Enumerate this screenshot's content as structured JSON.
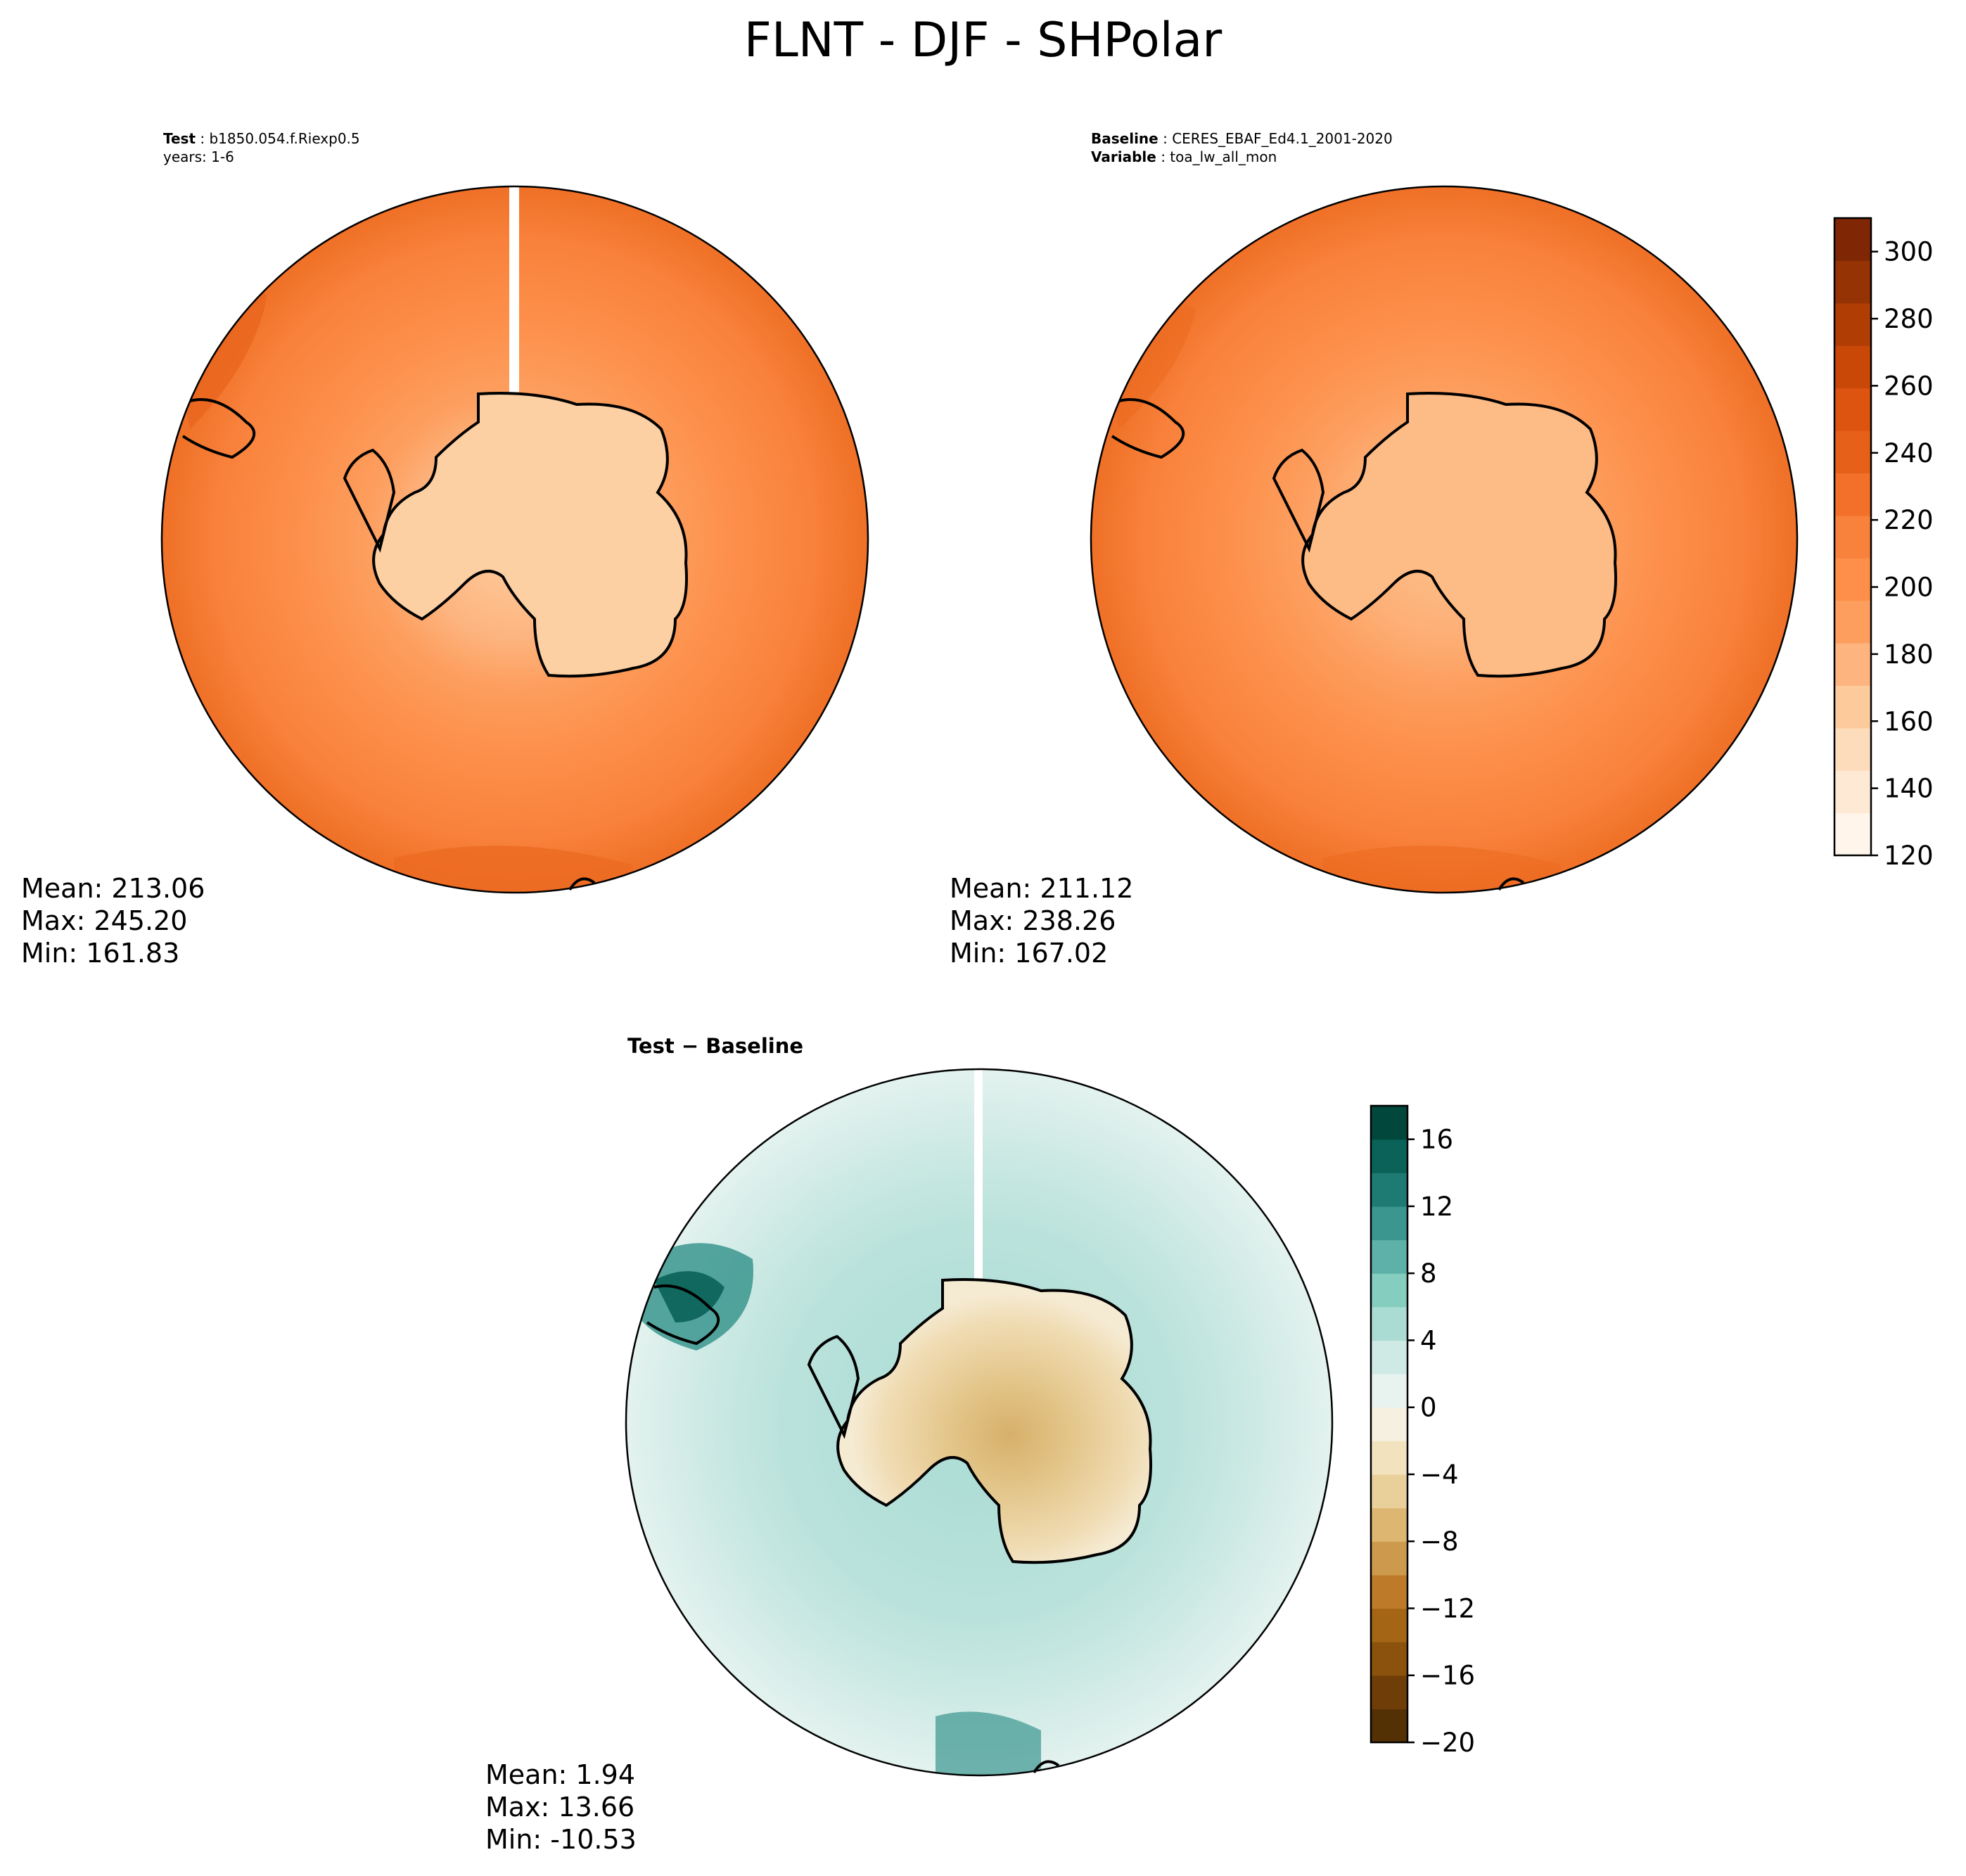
{
  "title": "FLNT - DJF - SHPolar",
  "test_panel": {
    "label_key": "Test",
    "label_value": "b1850.054.f.Riexp0.5",
    "years": "years: 1-6",
    "stats": {
      "mean": "Mean: 213.06",
      "max": "Max: 245.20",
      "min": "Min: 161.83"
    }
  },
  "baseline_panel": {
    "label_key": "Baseline",
    "label_value": "CERES_EBAF_Ed4.1_2001-2020",
    "variable_key": "Variable",
    "variable_value": "toa_lw_all_mon",
    "stats": {
      "mean": "Mean: 211.12",
      "max": "Max: 238.26",
      "min": "Min: 167.02"
    }
  },
  "diff_panel": {
    "title": "Test − Baseline",
    "stats": {
      "mean": "Mean:  1.94",
      "max": "Max: 13.66",
      "min": "Min: -10.53"
    }
  },
  "colorbars": {
    "main": {
      "min": 120,
      "max": 310,
      "tick_labels": [
        "120",
        "140",
        "160",
        "180",
        "200",
        "220",
        "240",
        "260",
        "280",
        "300"
      ],
      "tick_values": [
        120,
        140,
        160,
        180,
        200,
        220,
        240,
        260,
        280,
        300
      ],
      "colors": [
        "#fff5eb",
        "#fee9d4",
        "#fddcbb",
        "#fdca9b",
        "#fdb47f",
        "#fd9e5e",
        "#fd8f4a",
        "#f8813b",
        "#f2702a",
        "#e6601a",
        "#dd5410",
        "#c94808",
        "#b03d04",
        "#963304",
        "#7f2704"
      ]
    },
    "diff": {
      "min": -20,
      "max": 18,
      "tick_labels": [
        "−20",
        "−16",
        "−12",
        "−8",
        "−4",
        "0",
        "4",
        "8",
        "12",
        "16"
      ],
      "tick_values": [
        -20,
        -16,
        -12,
        -8,
        -4,
        0,
        4,
        8,
        12,
        16
      ],
      "colors": [
        "#543005",
        "#6f3e08",
        "#8a520c",
        "#a46514",
        "#bd7b2a",
        "#cd9a4d",
        "#ddb771",
        "#e9d09a",
        "#f2e3be",
        "#f5f0df",
        "#e8f3f0",
        "#cfeae5",
        "#aadcd4",
        "#84cdbf",
        "#5db1a8",
        "#3a968e",
        "#1d7b73",
        "#0a6258",
        "#01473c"
      ]
    }
  }
}
